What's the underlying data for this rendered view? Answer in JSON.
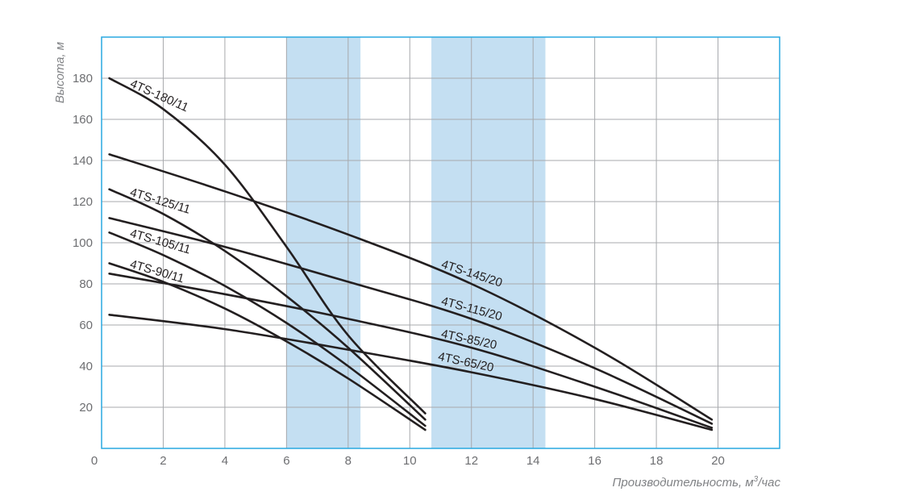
{
  "chart_data": {
    "type": "line",
    "title": "",
    "xlabel": "Производительность, м",
    "xlabel_sup": "3",
    "xlabel_suffix": "/час",
    "ylabel": "Высота, м",
    "xlim": [
      0,
      22
    ],
    "ylim": [
      0,
      200
    ],
    "x_ticks": [
      0,
      2,
      4,
      6,
      8,
      10,
      12,
      14,
      16,
      18,
      20
    ],
    "y_ticks": [
      20,
      40,
      60,
      80,
      100,
      120,
      140,
      160,
      180
    ],
    "grid": true,
    "highlight_bands": [
      {
        "x_from": 6.0,
        "x_to": 8.4
      },
      {
        "x_from": 10.7,
        "x_to": 14.4
      }
    ],
    "series": [
      {
        "name": "4TS-180/11",
        "x": [
          0.25,
          2,
          4,
          6,
          8,
          10.5
        ],
        "y": [
          180,
          165,
          138,
          98,
          55,
          17
        ]
      },
      {
        "name": "4TS-125/11",
        "x": [
          0.25,
          2,
          4,
          6,
          8,
          10.5
        ],
        "y": [
          126,
          114,
          96,
          74,
          49,
          14
        ]
      },
      {
        "name": "4TS-105/11",
        "x": [
          0.25,
          2,
          4,
          6,
          8,
          10.5
        ],
        "y": [
          105,
          94,
          79,
          61,
          40,
          11
        ]
      },
      {
        "name": "4TS-90/11",
        "x": [
          0.25,
          2,
          4,
          6,
          8,
          10.5
        ],
        "y": [
          90,
          81,
          68,
          52,
          34,
          9
        ]
      },
      {
        "name": "4TS-145/20",
        "x": [
          0.25,
          4,
          8,
          12,
          16,
          19.8
        ],
        "y": [
          143,
          125,
          104,
          80,
          49,
          14
        ]
      },
      {
        "name": "4TS-115/20",
        "x": [
          0.25,
          4,
          8,
          12,
          16,
          19.8
        ],
        "y": [
          112,
          98,
          81,
          63,
          39,
          12
        ]
      },
      {
        "name": "4TS-85/20",
        "x": [
          0.25,
          4,
          8,
          12,
          16,
          19.8
        ],
        "y": [
          85,
          75,
          63,
          49,
          30,
          10
        ]
      },
      {
        "name": "4TS-65/20",
        "x": [
          0.25,
          4,
          8,
          12,
          16,
          19.8
        ],
        "y": [
          65,
          58,
          48,
          37,
          24,
          9
        ]
      }
    ],
    "annotations": [
      {
        "text": "4TS-180/11",
        "x": 0.9,
        "y": 176,
        "angle": 24
      },
      {
        "text": "4TS-125/11",
        "x": 0.9,
        "y": 123,
        "angle": 17
      },
      {
        "text": "4TS-105/11",
        "x": 0.9,
        "y": 103,
        "angle": 16
      },
      {
        "text": "4TS-90/11",
        "x": 0.9,
        "y": 88,
        "angle": 16
      },
      {
        "text": "4TS-145/20",
        "x": 11.0,
        "y": 88,
        "angle": 18
      },
      {
        "text": "4TS-115/20",
        "x": 11.0,
        "y": 70,
        "angle": 15
      },
      {
        "text": "4TS-85/20",
        "x": 11.0,
        "y": 54,
        "angle": 12
      },
      {
        "text": "4TS-65/20",
        "x": 10.9,
        "y": 43,
        "angle": 12
      }
    ],
    "colors": {
      "frame": "#29a8e0",
      "grid": "#a7a9ac",
      "band": "#c4dff2",
      "curve": "#231f20"
    }
  }
}
